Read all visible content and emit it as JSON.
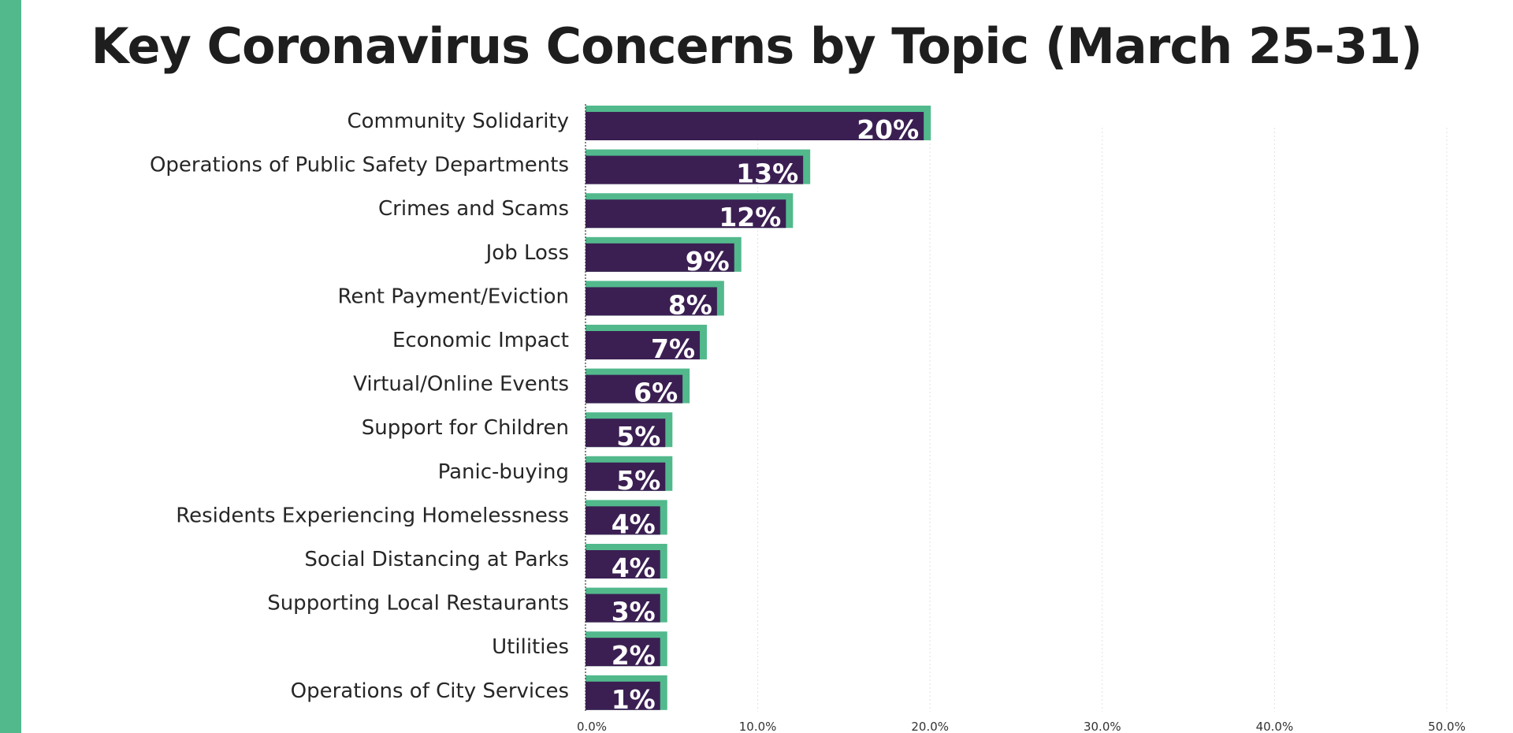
{
  "colors": {
    "bar_fill": "#3b1f52",
    "bar_shadow": "#52b98d",
    "accent_strip": "#52b98d",
    "title": "#1e1e1e",
    "label": "#262626",
    "grid": "#e2e2e2"
  },
  "chart_data": {
    "type": "bar",
    "orientation": "horizontal",
    "title": "Key Coronavirus Concerns by Topic (March 25-31)",
    "xlabel": "",
    "ylabel": "",
    "categories": [
      "Community Solidarity",
      "Operations of Public Safety Departments",
      "Crimes and Scams",
      "Job Loss",
      "Rent Payment/Eviction",
      "Economic Impact",
      "Virtual/Online Events",
      "Support for Children",
      "Panic-buying",
      "Residents Experiencing Homelessness",
      "Social Distancing at Parks",
      "Supporting Local Restaurants",
      "Utilities",
      "Operations of City Services"
    ],
    "values": [
      20,
      13,
      12,
      9,
      8,
      7,
      6,
      5,
      5,
      4,
      4,
      3,
      2,
      1
    ],
    "data_labels": [
      "20%",
      "13%",
      "12%",
      "9%",
      "8%",
      "7%",
      "6%",
      "5%",
      "5%",
      "4%",
      "4%",
      "3%",
      "2%",
      "1%"
    ],
    "xlim": [
      0,
      50
    ],
    "x_ticks": [
      0,
      10,
      20,
      30,
      40,
      50
    ],
    "x_tick_labels": [
      "0.0%",
      "10.0%",
      "20.0%",
      "30.0%",
      "40.0%",
      "50.0%"
    ],
    "grid": true,
    "legend": false
  }
}
